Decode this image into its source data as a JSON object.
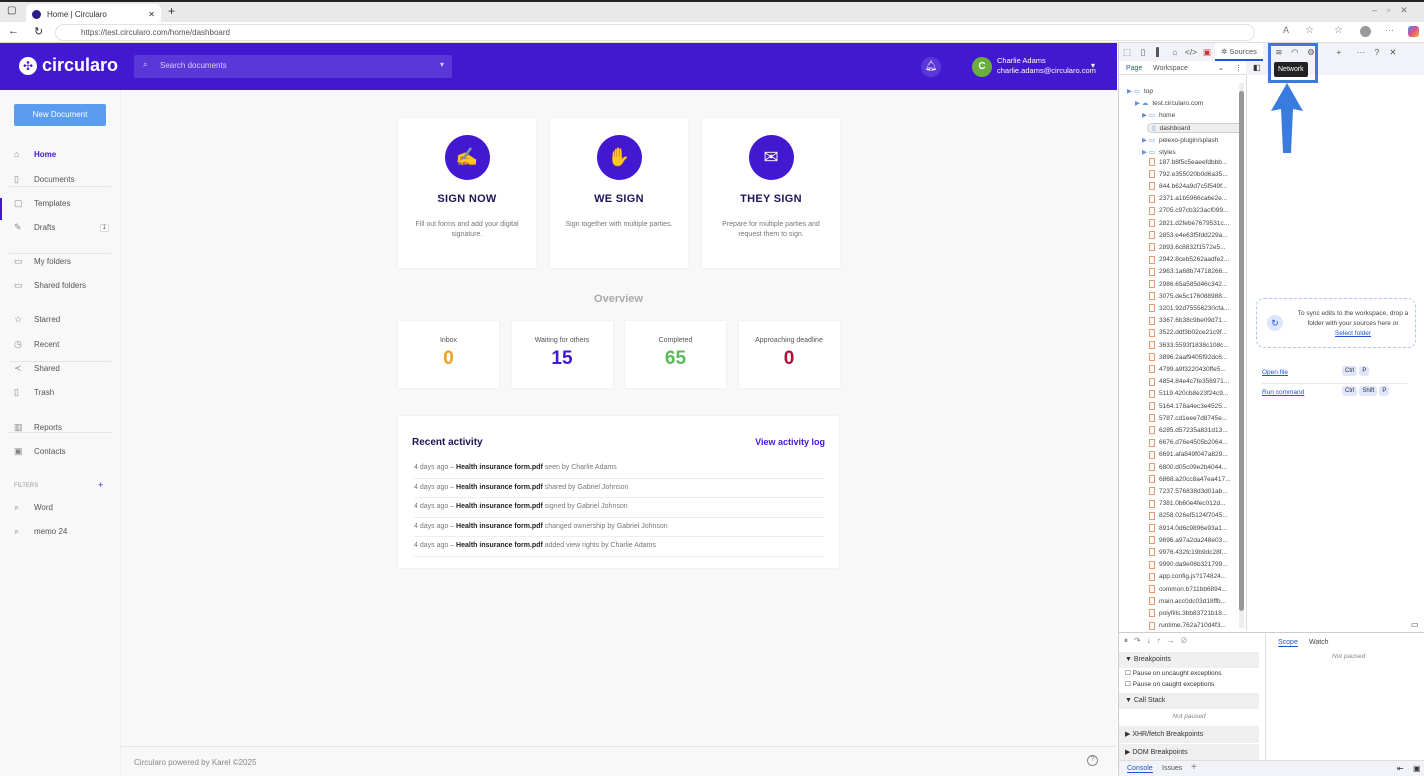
{
  "browser": {
    "tab_title": "Home | Circularo",
    "url": "https://test.circularo.com/home/dashboard"
  },
  "header": {
    "logo": "circularo",
    "search_placeholder": "Search documents",
    "user_initial": "C",
    "user_name": "Charlie Adams",
    "user_email": "charlie.adams@circularo.com"
  },
  "sidebar": {
    "new_doc": "New Document",
    "items": [
      {
        "label": "Home",
        "icon": "home-icon",
        "glyph": "⌂"
      },
      {
        "label": "Documents",
        "icon": "document-icon",
        "glyph": "▯"
      },
      {
        "label": "Templates",
        "icon": "template-icon",
        "glyph": "▢"
      },
      {
        "label": "Drafts",
        "icon": "edit-icon",
        "glyph": "✎",
        "badge": "1"
      },
      {
        "label": "My folders",
        "icon": "folder-icon",
        "glyph": "▭"
      },
      {
        "label": "Shared folders",
        "icon": "shared-folder-icon",
        "glyph": "▭"
      },
      {
        "label": "Starred",
        "icon": "star-icon",
        "glyph": "☆"
      },
      {
        "label": "Recent",
        "icon": "clock-icon",
        "glyph": "◷"
      },
      {
        "label": "Shared",
        "icon": "share-icon",
        "glyph": "≺"
      },
      {
        "label": "Trash",
        "icon": "trash-icon",
        "glyph": "▯"
      },
      {
        "label": "Reports",
        "icon": "chart-icon",
        "glyph": "▥"
      },
      {
        "label": "Contacts",
        "icon": "contacts-icon",
        "glyph": "▣"
      }
    ],
    "filters_label": "FILTERS",
    "filters": [
      "Word",
      "memo 24"
    ]
  },
  "actions": [
    {
      "title": "SIGN NOW",
      "desc": "Fill out forms and add your digital signature.",
      "glyph": "✍"
    },
    {
      "title": "WE SIGN",
      "desc": "Sign together with multiple parties.",
      "glyph": "✋"
    },
    {
      "title": "THEY SIGN",
      "desc": "Prepare for multiple parties and request them to sign.",
      "glyph": "✉"
    }
  ],
  "overview": {
    "title": "Overview",
    "stats": [
      {
        "label": "Inbox",
        "value": "0",
        "color": "#f0a020"
      },
      {
        "label": "Waiting for others",
        "value": "15",
        "color": "#4318d1"
      },
      {
        "label": "Completed",
        "value": "65",
        "color": "#5cb85c"
      },
      {
        "label": "Approaching deadline",
        "value": "0",
        "color": "#b0103a"
      }
    ]
  },
  "activity": {
    "title": "Recent activity",
    "link": "View activity log",
    "rows": [
      {
        "time": "4 days ago",
        "file": "Health insurance form.pdf",
        "text": "seen by Charlie Adams"
      },
      {
        "time": "4 days ago",
        "file": "Health insurance form.pdf",
        "text": "shared by Gabriel Johnson"
      },
      {
        "time": "4 days ago",
        "file": "Health insurance form.pdf",
        "text": "signed by Gabriel Johnson"
      },
      {
        "time": "4 days ago",
        "file": "Health insurance form.pdf",
        "text": "changed ownership by Gabriel Johnson"
      },
      {
        "time": "4 days ago",
        "file": "Health insurance form.pdf",
        "text": "added view rights by Charlie Adams"
      }
    ]
  },
  "footer": {
    "text": "Circularo powered by Karel ©2025"
  },
  "devtools": {
    "sources_tab": "Sources",
    "tooltip": "Network",
    "page_tab": "Page",
    "workspace_tab": "Workspace",
    "tree": [
      "top",
      "test.circularo.com",
      "home",
      "dashboard",
      "pelexo-plugin/splash",
      "styles"
    ],
    "files": [
      "187.b8f5c5eaeefdbbb...",
      "792.e355020b0d6a35...",
      "844.b624a9d7c5f549f...",
      "2371.a1b5966ca6e2e...",
      "2705.c97cb323acf099...",
      "2821.d2febe7679531c...",
      "2853.e4e63f5fdd229a...",
      "2893.6c8832f1572e5...",
      "2942.8ceb5262aadfe2...",
      "2963.1a68b74718266...",
      "2986.65a585d46c342...",
      "3075.de5c176088988...",
      "3201.92d75556230cfa...",
      "3367.6b38c9be09d71...",
      "3522.ddf3b02ce21c9f...",
      "3633.5593f1838c108c...",
      "3896.2aaf9405f92dc6...",
      "4799.a9f3220430ffe5...",
      "4854.84e4c7fe356971...",
      "5119.420cb8e23f24c9...",
      "5164.178a4ec3e4525...",
      "5787.cd1eee7d8745e...",
      "6285.d57235a831d13...",
      "6676.d76e4505b2064...",
      "6691.afa849f047a829...",
      "6800.d05c09e2b4044...",
      "6868.a20cc8a47ea417...",
      "7237.576838d3d01ab...",
      "7381.0b60e4fec012d...",
      "8258.026ef5124f7045...",
      "8914.0d6c9896e93a1...",
      "9696.a97a2da248e03...",
      "9976.432fc19b9dc28f...",
      "9990.da9e06b321799...",
      "app.config.js?174824...",
      "common.b711bb6894...",
      "main.acc0dc03d18ffb...",
      "polyfills.3bb83721b18...",
      "runtime.762a710d4f3..."
    ],
    "sync_text": "To sync edits to the workspace, drop a folder with your sources here or",
    "select_folder": "Select folder",
    "open_file": "Open file",
    "run_command": "Run command",
    "keys_open": [
      "Ctrl",
      "P"
    ],
    "keys_run": [
      "Ctrl",
      "Shift",
      "P"
    ],
    "breakpoints": "Breakpoints",
    "pause_uncaught": "Pause on uncaught exceptions",
    "pause_caught": "Pause on caught exceptions",
    "call_stack": "Call Stack",
    "not_paused": "Not paused",
    "xhr": "XHR/fetch Breakpoints",
    "dom": "DOM Breakpoints",
    "scope": "Scope",
    "watch": "Watch",
    "console": "Console",
    "issues": "Issues"
  },
  "colors": {
    "brand": "#4318d1",
    "highlight": "#3a7be0"
  }
}
